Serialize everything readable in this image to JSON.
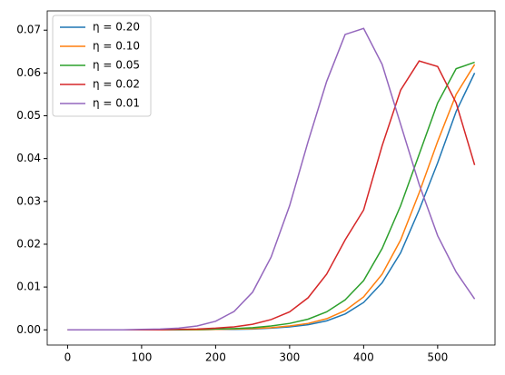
{
  "chart_data": {
    "type": "line",
    "x": [
      0,
      25,
      50,
      75,
      100,
      125,
      150,
      175,
      200,
      225,
      250,
      275,
      300,
      325,
      350,
      375,
      400,
      425,
      450,
      475,
      500,
      525,
      550
    ],
    "series": [
      {
        "name": "η = 0.20",
        "color": "#1f77b4",
        "values": [
          0,
          0,
          0,
          0,
          0,
          0,
          0,
          0,
          0.0001,
          0.0001,
          0.0002,
          0.0004,
          0.0007,
          0.0012,
          0.0021,
          0.0037,
          0.0064,
          0.011,
          0.018,
          0.028,
          0.039,
          0.051,
          0.06
        ]
      },
      {
        "name": "η = 0.10",
        "color": "#ff7f0e",
        "values": [
          0,
          0,
          0,
          0,
          0,
          0,
          0,
          0,
          0.0001,
          0.0002,
          0.0003,
          0.0005,
          0.0009,
          0.0015,
          0.0026,
          0.0045,
          0.0077,
          0.013,
          0.021,
          0.032,
          0.044,
          0.055,
          0.062
        ]
      },
      {
        "name": "η = 0.05",
        "color": "#2ca02c",
        "values": [
          0,
          0,
          0,
          0,
          0,
          0,
          0,
          0.0001,
          0.0002,
          0.0003,
          0.0005,
          0.0009,
          0.0015,
          0.0025,
          0.0042,
          0.007,
          0.0115,
          0.019,
          0.029,
          0.041,
          0.053,
          0.061,
          0.0625
        ]
      },
      {
        "name": "η = 0.02",
        "color": "#d62728",
        "values": [
          0,
          0,
          0,
          0,
          0,
          0,
          0.0001,
          0.0002,
          0.0004,
          0.0007,
          0.0013,
          0.0024,
          0.0042,
          0.0075,
          0.013,
          0.021,
          0.028,
          0.043,
          0.056,
          0.0628,
          0.0615,
          0.053,
          0.0385
        ]
      },
      {
        "name": "η = 0.01",
        "color": "#9467bd",
        "values": [
          0,
          0,
          0,
          0,
          0.0001,
          0.0002,
          0.0004,
          0.0009,
          0.002,
          0.0043,
          0.0088,
          0.017,
          0.029,
          0.044,
          0.058,
          0.069,
          0.0704,
          0.062,
          0.048,
          0.034,
          0.022,
          0.0135,
          0.0072
        ]
      }
    ],
    "xlim": [
      -27.5,
      577.5
    ],
    "xticks": [
      0,
      100,
      200,
      300,
      400,
      500
    ],
    "ylim": [
      -0.00355,
      0.0745
    ],
    "yticks": [
      {
        "value": 0,
        "label": "0.00"
      },
      0.01,
      0.02,
      0.03,
      0.04,
      0.05,
      0.06,
      0.07
    ],
    "legend": "upper left"
  }
}
